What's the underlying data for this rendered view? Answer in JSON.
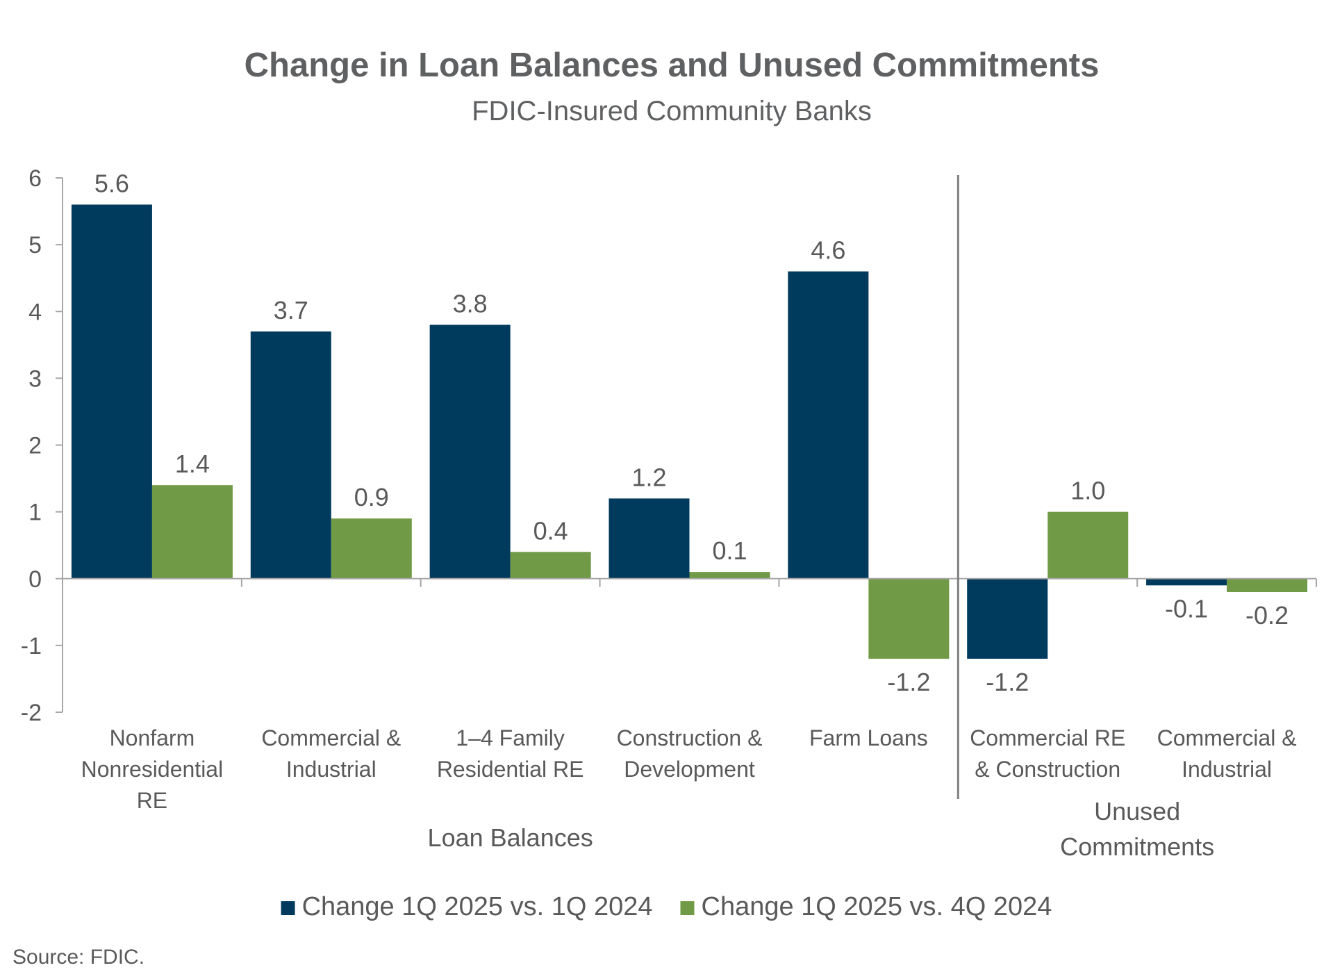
{
  "chart_data": {
    "type": "bar",
    "title": "Change in Loan Balances and Unused Commitments",
    "subtitle": "FDIC-Insured Community Banks",
    "ylim": [
      -2,
      6
    ],
    "yticks": [
      6,
      5,
      4,
      3,
      2,
      1,
      0,
      -1,
      -2
    ],
    "categories": [
      [
        "Nonfarm",
        "Nonresidential",
        "RE"
      ],
      [
        "Commercial &",
        "Industrial"
      ],
      [
        "1–4 Family",
        "Residential RE"
      ],
      [
        "Construction &",
        "Development"
      ],
      [
        "Farm Loans"
      ],
      [
        "Commercial RE",
        "& Construction"
      ],
      [
        "Commercial &",
        "Industrial"
      ]
    ],
    "groups": [
      {
        "label": [
          "Loan Balances"
        ],
        "categories": [
          0,
          1,
          2,
          3,
          4
        ]
      },
      {
        "label": [
          "Unused",
          "Commitments"
        ],
        "categories": [
          5,
          6
        ]
      }
    ],
    "series": [
      {
        "name": "Change 1Q 2025 vs. 1Q 2024",
        "color": "#003a5d",
        "values": [
          5.6,
          3.7,
          3.8,
          1.2,
          4.6,
          -1.2,
          -0.1
        ],
        "labels": [
          "5.6",
          "3.7",
          "3.8",
          "1.2",
          "4.6",
          "-1.2",
          "-0.1"
        ]
      },
      {
        "name": "Change 1Q 2025 vs. 4Q 2024",
        "color": "#709a46",
        "values": [
          1.4,
          0.9,
          0.4,
          0.1,
          -1.2,
          1.0,
          -0.2
        ],
        "labels": [
          "1.4",
          "0.9",
          "0.4",
          "0.1",
          "-1.2",
          "1.0",
          "-0.2"
        ]
      }
    ],
    "legend_position": "bottom",
    "grid": false
  },
  "source": "Source: FDIC."
}
